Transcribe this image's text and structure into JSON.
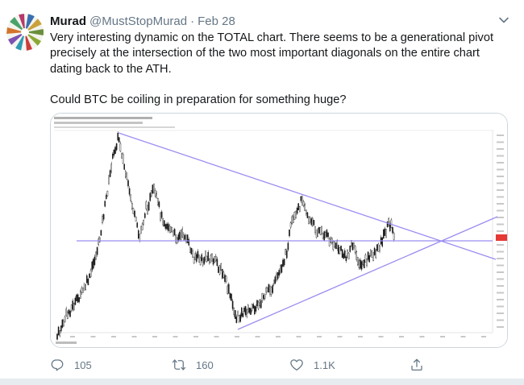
{
  "tweet": {
    "display_name": "Murad",
    "handle": "@MustStopMurad",
    "separator": "·",
    "date": "Feb 28",
    "paragraph_1": "Very interesting dynamic on the TOTAL chart. There seems to be a generational pivot precisely at the intersection of the two most important diagonals on the entire chart dating back to the ATH.",
    "paragraph_2": "Could BTC be coiling in preparation for something huge?"
  },
  "actions": {
    "reply_count": "105",
    "retweet_count": "160",
    "like_count": "1.1K"
  },
  "colors": {
    "text": "#14171a",
    "secondary": "#657786",
    "border": "#ccd6dd",
    "trendline": "#9b8ef0",
    "candle": "#1a1a1a",
    "price_tag": "#e53935"
  },
  "icons": {
    "reply": "reply-icon",
    "retweet": "retweet-icon",
    "like": "like-icon",
    "share": "share-icon",
    "caret": "chevron-down-icon"
  }
}
